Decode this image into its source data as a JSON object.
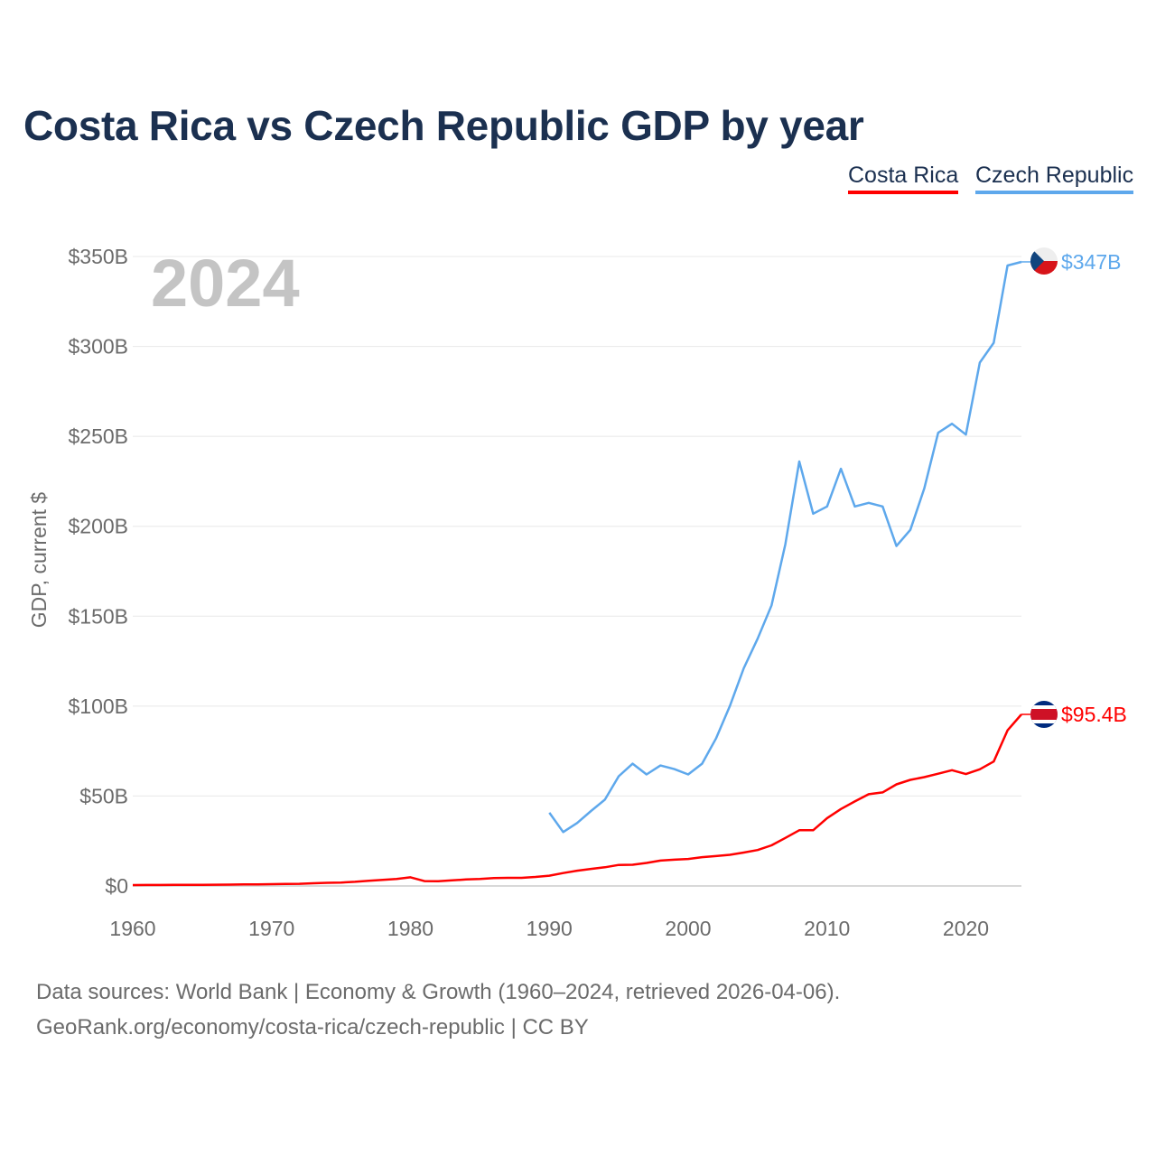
{
  "title": "Costa Rica vs Czech Republic GDP by year",
  "legend": [
    {
      "label": "Costa Rica",
      "color": "#ff0000"
    },
    {
      "label": "Czech Republic",
      "color": "#5ea8ec"
    }
  ],
  "year_watermark": "2024",
  "footer": {
    "line1": "Data sources: World Bank | Economy & Growth (1960–2024, retrieved 2026-04-06).",
    "line2": "GeoRank.org/economy/costa-rica/czech-republic | CC BY"
  },
  "chart_data": {
    "type": "line",
    "title": "Costa Rica vs Czech Republic GDP by year",
    "xlabel": "",
    "ylabel": "GDP, current $",
    "xlim": [
      1960,
      2024
    ],
    "ylim": [
      0,
      350
    ],
    "x_ticks": [
      1960,
      1970,
      1980,
      1990,
      2000,
      2010,
      2020
    ],
    "x_tick_labels": [
      "1960",
      "1970",
      "1980",
      "1990",
      "2000",
      "2010",
      "2020"
    ],
    "y_ticks": [
      0,
      50,
      100,
      150,
      200,
      250,
      300,
      350
    ],
    "y_tick_labels": [
      "$0",
      "$50B",
      "$100B",
      "$150B",
      "$200B",
      "$250B",
      "$300B",
      "$350B"
    ],
    "grid": true,
    "legend_position": "top-right",
    "series": [
      {
        "name": "Costa Rica",
        "color": "#ff0000",
        "end_label": "$95.4B",
        "x_start": 1960,
        "values": [
          0.51,
          0.54,
          0.56,
          0.59,
          0.62,
          0.66,
          0.71,
          0.75,
          0.83,
          0.9,
          0.98,
          1.08,
          1.23,
          1.5,
          1.76,
          1.93,
          2.3,
          2.9,
          3.4,
          3.9,
          4.8,
          2.7,
          2.6,
          3.1,
          3.6,
          3.9,
          4.4,
          4.5,
          4.5,
          5.0,
          5.7,
          7.2,
          8.5,
          9.5,
          10.4,
          11.7,
          11.8,
          12.8,
          14.1,
          14.6,
          15.0,
          16.0,
          16.6,
          17.3,
          18.6,
          20.0,
          22.6,
          26.7,
          31.0,
          31.0,
          37.7,
          42.8,
          47.0,
          51.0,
          52.0,
          56.5,
          59.0,
          60.5,
          62.4,
          64.4,
          62.2,
          64.9,
          69.2,
          86.5,
          95.4
        ]
      },
      {
        "name": "Czech Republic",
        "color": "#5ea8ec",
        "end_label": "$347B",
        "x_start": 1990,
        "values": [
          40.7,
          30,
          35,
          41.7,
          48,
          61,
          68,
          62,
          67,
          65,
          62,
          68,
          82,
          100,
          121,
          137.5,
          156,
          190,
          236,
          207,
          211,
          232,
          211,
          213,
          211,
          189,
          198,
          221,
          252,
          257,
          251,
          291,
          302,
          345,
          347
        ]
      }
    ]
  }
}
